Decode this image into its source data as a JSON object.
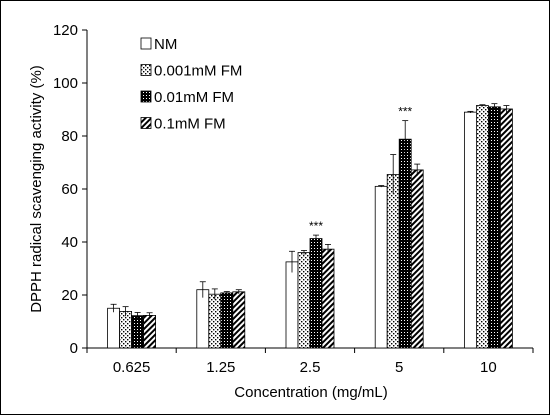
{
  "chart_data": {
    "type": "bar",
    "title": "",
    "xlabel": "Concentration (mg/mL)",
    "ylabel": "DPPH radical scavenging activity (%)",
    "ylim": [
      0,
      120
    ],
    "yticks": [
      0,
      20,
      40,
      60,
      80,
      100,
      120
    ],
    "grid": false,
    "legend_position": "top-left",
    "categories": [
      "0.625",
      "1.25",
      "2.5",
      "5",
      "10"
    ],
    "series": [
      {
        "name": "NM",
        "pattern": "none",
        "values": [
          15.0,
          22.0,
          32.5,
          61.0,
          89.0
        ],
        "errors": [
          1.5,
          3.0,
          4.0,
          0.3,
          0.3
        ]
      },
      {
        "name": "0.001mM FM",
        "pattern": "dots",
        "values": [
          13.8,
          20.3,
          36.0,
          65.5,
          91.5
        ],
        "errors": [
          1.8,
          2.0,
          0.8,
          7.5,
          0.3
        ]
      },
      {
        "name": "0.01mM FM",
        "pattern": "dense",
        "values": [
          12.2,
          20.8,
          41.3,
          78.8,
          91.0
        ],
        "errors": [
          1.2,
          0.5,
          1.3,
          7.0,
          1.2
        ]
      },
      {
        "name": "0.1mM FM",
        "pattern": "diagonal",
        "values": [
          12.3,
          21.2,
          37.3,
          67.2,
          90.2
        ],
        "errors": [
          1.0,
          0.8,
          1.8,
          2.2,
          1.3
        ]
      }
    ],
    "annotations": [
      {
        "text": "***",
        "category": "2.5",
        "series": "0.01mM FM"
      },
      {
        "text": "***",
        "category": "5",
        "series": "0.01mM FM"
      }
    ]
  }
}
